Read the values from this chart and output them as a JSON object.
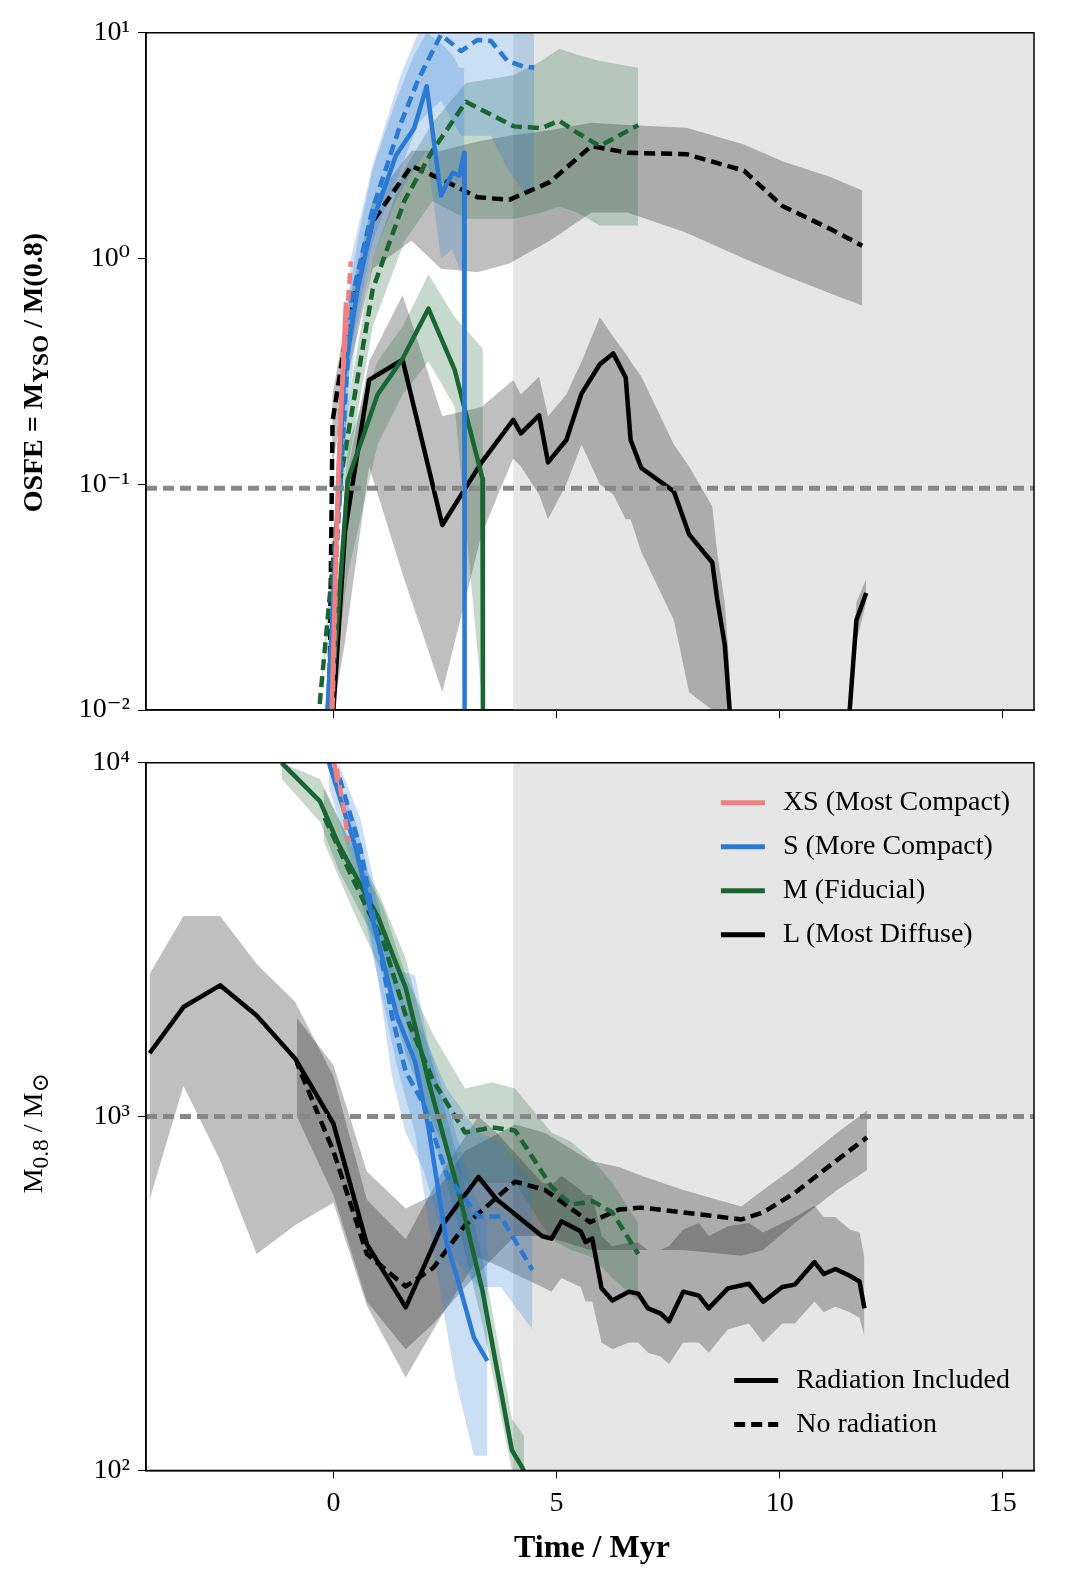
{
  "chart_data": [
    {
      "type": "line",
      "ylabel": "OSFE = M$_{YSO}$ / M(0.8)",
      "log": "y",
      "tick_labels": "y",
      "xlim": [
        -4.2,
        15.7
      ],
      "xticks": [
        0,
        5,
        10,
        15
      ],
      "ylim": [
        0.01,
        10
      ],
      "yticks": [
        {
          "value": 0.01,
          "label": "10⁻²"
        },
        {
          "value": 0.1,
          "label": "10⁻¹"
        },
        {
          "value": 1,
          "label": "10⁰"
        },
        {
          "value": 10,
          "label": "10¹"
        }
      ],
      "bands": [
        {
          "axis": "x",
          "from": 4.03,
          "to": 15.7,
          "color": "#e6e6e6"
        }
      ],
      "ref_lines": [
        {
          "axis": "y",
          "value": 0.096,
          "color": "#888888",
          "line_style": "dashed"
        }
      ],
      "series": [
        {
          "color": "#f08080",
          "line_style": "solid",
          "x": [
            -0.04,
            0.1,
            0.28
          ],
          "values": [
            0.01,
            0.1,
            0.64
          ]
        },
        {
          "color": "#f08080",
          "line_style": "dashed",
          "x": [
            -0.02,
            0.15,
            0.39
          ],
          "values": [
            0.01,
            0.2,
            0.97
          ]
        },
        {
          "color": "#2a7ad5",
          "line_style": "solid",
          "x": [
            -0.13,
            0.24,
            0.54,
            0.88,
            1.4,
            1.81,
            2.09,
            2.41,
            2.67,
            2.82,
            2.93,
            2.94
          ],
          "values": [
            0.01,
            0.3,
            0.73,
            1.46,
            2.86,
            3.78,
            5.8,
            1.9,
            2.4,
            2.33,
            2.94,
            0.01
          ],
          "lower": [
            0.01,
            0.15,
            0.5,
            1.0,
            1.8,
            2.5,
            3.0,
            1.0,
            1.1,
            0.9,
            0.85,
            0.01
          ],
          "upper": [
            0.01,
            0.5,
            1.2,
            2.5,
            5.0,
            8,
            10,
            9,
            8,
            7,
            7,
            7
          ]
        },
        {
          "color": "#2a7ad5",
          "line_style": "dashed",
          "x": [
            -0.13,
            0.39,
            0.88,
            1.51,
            1.9,
            2.41,
            2.86,
            3.23,
            3.53,
            3.9,
            4.25,
            4.5
          ],
          "values": [
            0.01,
            0.64,
            1.66,
            3.97,
            6.2,
            9.8,
            8.3,
            9.3,
            9.2,
            7.5,
            7.1,
            7.0
          ],
          "lower": [
            0.01,
            0.4,
            1.2,
            2.5,
            4,
            5,
            3.5,
            3.5,
            3.5,
            2.5,
            2.0,
            2.0
          ],
          "upper": [
            0.01,
            1.0,
            2.6,
            6.5,
            10,
            10,
            10,
            10,
            10,
            10,
            10,
            10
          ]
        },
        {
          "color": "#1a6632",
          "line_style": "solid",
          "x": [
            -0.06,
            0.32,
            0.99,
            1.55,
            2.13,
            2.72,
            3.34,
            3.35
          ],
          "values": [
            0.01,
            0.104,
            0.25,
            0.36,
            0.6,
            0.32,
            0.106,
            0.01
          ],
          "lower": [
            0.01,
            0.04,
            0.15,
            0.25,
            0.35,
            0.22,
            0.01,
            0.01
          ],
          "upper": [
            0.01,
            0.15,
            0.35,
            0.5,
            0.85,
            0.55,
            0.4,
            0.38
          ]
        },
        {
          "color": "#1a6632",
          "line_style": "dashed",
          "x": [
            -0.32,
            0.17,
            0.88,
            1.6,
            2.22,
            2.97,
            4.05,
            4.66,
            5.06,
            5.47,
            5.97,
            6.83
          ],
          "values": [
            0.01,
            0.109,
            0.73,
            1.82,
            3.0,
            4.95,
            3.85,
            3.78,
            4.08,
            3.6,
            3.15,
            3.9
          ],
          "lower": [
            0.01,
            0.08,
            0.5,
            1.2,
            1.8,
            1.5,
            1.5,
            1.6,
            1.7,
            1.6,
            1.4,
            1.4
          ],
          "upper": [
            0.01,
            0.15,
            1.0,
            2.5,
            4.0,
            6.0,
            6.5,
            7.5,
            8.5,
            8.0,
            7.5,
            7.0
          ]
        },
        {
          "color": "#000000",
          "line_style": "solid",
          "x": [
            0,
            0.26,
            0.8,
            1.55,
            2.44,
            3.32,
            4.03,
            4.2,
            4.61,
            4.81,
            5.22,
            5.56,
            5.97,
            6.27,
            6.55,
            6.66,
            6.9,
            7.63,
            7.97,
            8.49,
            8.6,
            8.77,
            8.88,
            10,
            11.57,
            11.72,
            11.94
          ],
          "values": [
            0.01,
            0.062,
            0.29,
            0.356,
            0.066,
            0.125,
            0.193,
            0.168,
            0.202,
            0.125,
            0.157,
            0.252,
            0.34,
            0.38,
            0.297,
            0.157,
            0.118,
            0.093,
            0.06,
            0.045,
            0.031,
            0.0195,
            0.01,
            null,
            0.01,
            0.025,
            0.033
          ],
          "lower": [
            0.01,
            0.02,
            0.12,
            0.04,
            0.012,
            0.06,
            0.13,
            0.12,
            0.09,
            0.07,
            0.1,
            0.15,
            0.1,
            0.09,
            0.07,
            0.07,
            0.05,
            0.025,
            0.012,
            0.01,
            0.01,
            0.01,
            0.01,
            null,
            0.01,
            0.02,
            0.03
          ],
          "upper": [
            0.01,
            0.1,
            0.35,
            0.69,
            0.2,
            0.22,
            0.29,
            0.25,
            0.3,
            0.2,
            0.25,
            0.35,
            0.55,
            0.45,
            0.38,
            0.35,
            0.3,
            0.15,
            0.12,
            0.08,
            0.05,
            0.03,
            0.015,
            null,
            0.01,
            0.03,
            0.038
          ]
        },
        {
          "color": "#000000",
          "line_style": "dashed",
          "x": [
            -0.09,
            -0.02,
            0.32,
            0.88,
            1.75,
            2.41,
            3.23,
            3.94,
            4.85,
            5.78,
            6.59,
            7.91,
            9.2,
            10.06,
            11.14,
            11.85
          ],
          "values": [
            0.01,
            0.19,
            0.51,
            1.46,
            2.57,
            2.25,
            1.87,
            1.82,
            2.18,
            3.15,
            2.94,
            2.9,
            2.45,
            1.71,
            1.35,
            1.14
          ],
          "lower": [
            0.01,
            0.12,
            0.3,
            0.9,
            1.2,
            0.9,
            0.87,
            0.95,
            1.2,
            1.6,
            1.6,
            1.3,
            1.0,
            0.85,
            0.7,
            0.62
          ],
          "upper": [
            0.01,
            0.25,
            0.6,
            1.8,
            3.0,
            3.0,
            3.3,
            3.5,
            3.7,
            4.0,
            3.9,
            3.8,
            3.2,
            2.7,
            2.3,
            2.0
          ]
        }
      ]
    },
    {
      "type": "line",
      "xlabel": "Time / Myr",
      "ylabel": "M$_{0.8}$ / M$_{⊙}$",
      "log": "y",
      "legend": "top right",
      "xlim": [
        -4.2,
        15.7
      ],
      "xticks": [
        0,
        5,
        10,
        15
      ],
      "ylim": [
        100,
        10000
      ],
      "yticks": [
        {
          "value": 100,
          "label": "10²"
        },
        {
          "value": 1000,
          "label": "10³"
        },
        {
          "value": 10000,
          "label": "10⁴"
        }
      ],
      "bands": [
        {
          "axis": "x",
          "from": 4.03,
          "to": 15.7,
          "color": "#e6e6e6"
        }
      ],
      "ref_lines": [
        {
          "axis": "y",
          "value": 1000,
          "color": "#888888",
          "line_style": "dashed"
        }
      ],
      "series": [
        {
          "name": "XS (Most Compact)",
          "color": "#f08080",
          "line_style": "solid",
          "x": [
            0.02,
            0.09
          ],
          "values": [
            10000,
            8800
          ]
        },
        {
          "color": "#f08080",
          "line_style": "dashed",
          "x": [
            0.05,
            0.2,
            0.34
          ],
          "values": [
            10000,
            7800,
            6000
          ]
        },
        {
          "name": "S (More Compact)",
          "color": "#2a7ad5",
          "line_style": "solid",
          "x": [
            -0.1,
            0.5,
            0.9,
            1.42,
            1.83,
            2.13,
            2.54,
            2.74,
            3.15,
            3.45
          ],
          "values": [
            10000,
            5750,
            3520,
            1930,
            1430,
            932,
            436,
            363,
            237,
            204
          ],
          "lower": [
            8500,
            4800,
            2800,
            1400,
            900,
            500,
            250,
            180,
            110,
            110
          ],
          "upper": [
            10000,
            6800,
            4300,
            2600,
            2500,
            1600,
            1100,
            900,
            600,
            500
          ]
        },
        {
          "color": "#2a7ad5",
          "line_style": "dashed",
          "x": [
            0.11,
            0.6,
            1.01,
            1.31,
            1.62,
            2.03,
            2.54,
            3.25,
            3.75,
            4.46
          ],
          "values": [
            9300,
            5750,
            3120,
            1930,
            1340,
            1080,
            684,
            522,
            522,
            369
          ],
          "lower": [
            8000,
            4700,
            2400,
            1300,
            900,
            700,
            420,
            330,
            330,
            250
          ],
          "upper": [
            10000,
            7000,
            4000,
            2700,
            2000,
            1700,
            1200,
            900,
            850,
            650
          ]
        },
        {
          "name": "M (Fiducial)",
          "color": "#1a6632",
          "line_style": "solid",
          "x": [
            -1.16,
            -0.3,
            0.11,
            1.01,
            1.62,
            2.13,
            2.84,
            3.34,
            4.0,
            4.27
          ],
          "values": [
            10000,
            7780,
            5900,
            3640,
            2310,
            1260,
            590,
            322,
            114,
            100
          ],
          "lower": [
            9000,
            6800,
            5000,
            3000,
            1900,
            1000,
            470,
            260,
            100,
            100
          ],
          "upper": [
            10000,
            9000,
            7000,
            4300,
            2800,
            1550,
            720,
            400,
            140,
            125
          ]
        },
        {
          "color": "#1a6632",
          "line_style": "dashed",
          "x": [
            -0.22,
            0.41,
            1.12,
            1.62,
            2.24,
            2.95,
            3.56,
            4.07,
            4.89,
            5.32,
            5.82,
            6.25,
            6.83
          ],
          "values": [
            7100,
            4770,
            3120,
            1930,
            1260,
            902,
            932,
            914,
            633,
            564,
            576,
            536,
            409
          ],
          "lower": [
            6000,
            3900,
            2500,
            1500,
            950,
            650,
            650,
            650,
            450,
            420,
            400,
            350,
            300
          ],
          "upper": [
            8500,
            5800,
            3900,
            2500,
            1700,
            1200,
            1250,
            1200,
            900,
            850,
            750,
            650,
            500
          ]
        },
        {
          "name": "L (Most Diffuse)",
          "color": "#000000",
          "line_style": "solid",
          "x": [
            -4.12,
            -3.36,
            -2.54,
            -1.72,
            -0.86,
            0,
            0.75,
            1.62,
            2.44,
            3.25,
            3.66,
            4.68,
            4.89,
            5.11,
            5.54,
            5.65,
            5.8,
            6.01,
            6.25,
            6.62,
            6.83,
            7.05,
            7.33,
            7.52,
            7.84,
            8.19,
            8.41,
            8.84,
            9.31,
            9.63,
            10.06,
            10.34,
            10.78,
            10.99,
            11.25,
            11.57,
            11.79,
            11.9
          ],
          "values": [
            1510,
            2040,
            2350,
            1930,
            1460,
            955,
            436,
            289,
            493,
            675,
            583,
            459,
            452,
            506,
            474,
            442,
            452,
            327,
            302,
            320,
            316,
            287,
            278,
            264,
            320,
            312,
            287,
            327,
            337,
            300,
            330,
            335,
            388,
            359,
            371,
            355,
            342,
            287
          ],
          "lower": [
            582,
            1220,
            753,
            409,
            493,
            571,
            292,
            183,
            276,
            400,
            380,
            330,
            320,
            350,
            330,
            300,
            300,
            230,
            220,
            230,
            230,
            215,
            210,
            200,
            230,
            230,
            215,
            250,
            260,
            230,
            260,
            260,
            300,
            280,
            290,
            280,
            270,
            240
          ],
          "upper": [
            2530,
            3690,
            3690,
            2700,
            2110,
            1300,
            582,
            450,
            700,
            1000,
            900,
            650,
            640,
            680,
            620,
            600,
            600,
            460,
            430,
            440,
            440,
            420,
            420,
            430,
            480,
            500,
            460,
            490,
            500,
            470,
            500,
            520,
            560,
            520,
            520,
            480,
            470,
            400
          ]
        },
        {
          "color": "#000000",
          "line_style": "dashed",
          "x": [
            -0.82,
            0,
            0.75,
            1.62,
            2.24,
            2.95,
            4.07,
            4.74,
            5.75,
            6.4,
            6.9,
            7.84,
            9.14,
            9.63,
            10.34,
            11.29,
            11.96
          ],
          "values": [
            1420,
            798,
            409,
            331,
            374,
            493,
            655,
            621,
            503,
            546,
            553,
            536,
            512,
            536,
            609,
            754,
            874
          ],
          "lower": [
            1000,
            600,
            300,
            220,
            260,
            330,
            460,
            460,
            420,
            420,
            420,
            420,
            404,
            420,
            500,
            620,
            707
          ],
          "upper": [
            1900,
            1400,
            700,
            550,
            600,
            800,
            950,
            900,
            750,
            720,
            680,
            620,
            557,
            620,
            720,
            900,
            1040
          ]
        },
        {
          "name": "Radiation Included",
          "color": "#000000",
          "line_style": "solid"
        },
        {
          "name": "No radiation",
          "color": "#000000",
          "line_style": "dashed"
        }
      ]
    }
  ]
}
